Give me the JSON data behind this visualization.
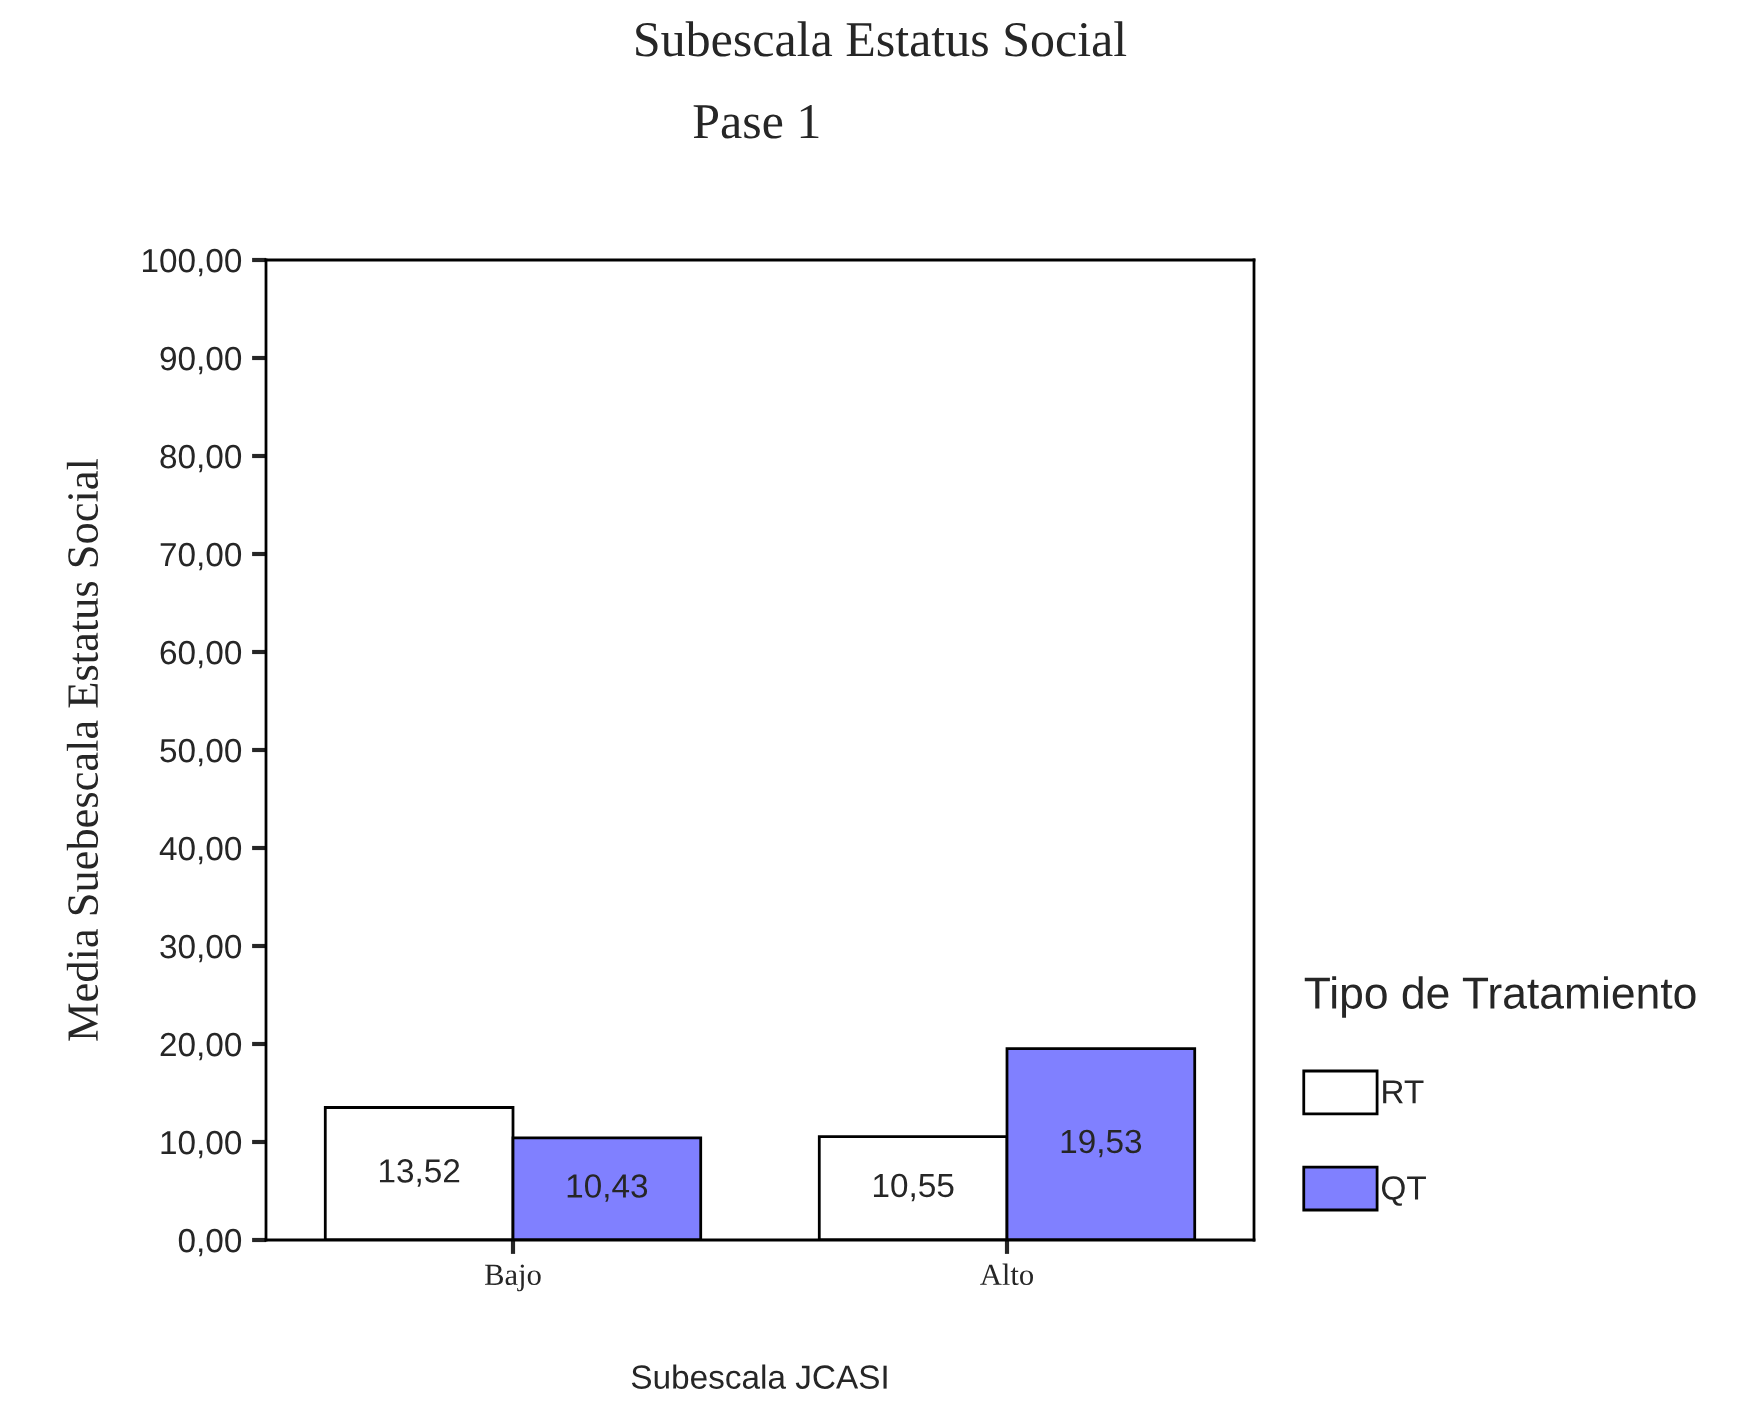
{
  "chart_data": {
    "type": "bar",
    "title": "Subescala Estatus Social",
    "subtitle": "Pase 1",
    "xlabel": "Subescala JCASI",
    "ylabel": "Media Suebescala Estatus Social",
    "legend_title": "Tipo de Tratamiento",
    "categories": [
      "Bajo",
      "Alto"
    ],
    "series": [
      {
        "name": "RT",
        "color": "#ffffff",
        "values": [
          13.52,
          10.55
        ],
        "value_labels": [
          "13,52",
          "10,55"
        ]
      },
      {
        "name": "QT",
        "color": "#8080ff",
        "values": [
          10.43,
          19.53
        ],
        "value_labels": [
          "10,43",
          "19,53"
        ]
      }
    ],
    "ylim": [
      0,
      100
    ],
    "yticks": [
      {
        "value": 0,
        "label": "0,00"
      },
      {
        "value": 10,
        "label": "10,00"
      },
      {
        "value": 20,
        "label": "20,00"
      },
      {
        "value": 30,
        "label": "30,00"
      },
      {
        "value": 40,
        "label": "40,00"
      },
      {
        "value": 50,
        "label": "50,00"
      },
      {
        "value": 60,
        "label": "60,00"
      },
      {
        "value": 70,
        "label": "70,00"
      },
      {
        "value": 80,
        "label": "80,00"
      },
      {
        "value": 90,
        "label": "90,00"
      },
      {
        "value": 100,
        "label": "100,00"
      }
    ],
    "grid": false,
    "legend": "right"
  }
}
